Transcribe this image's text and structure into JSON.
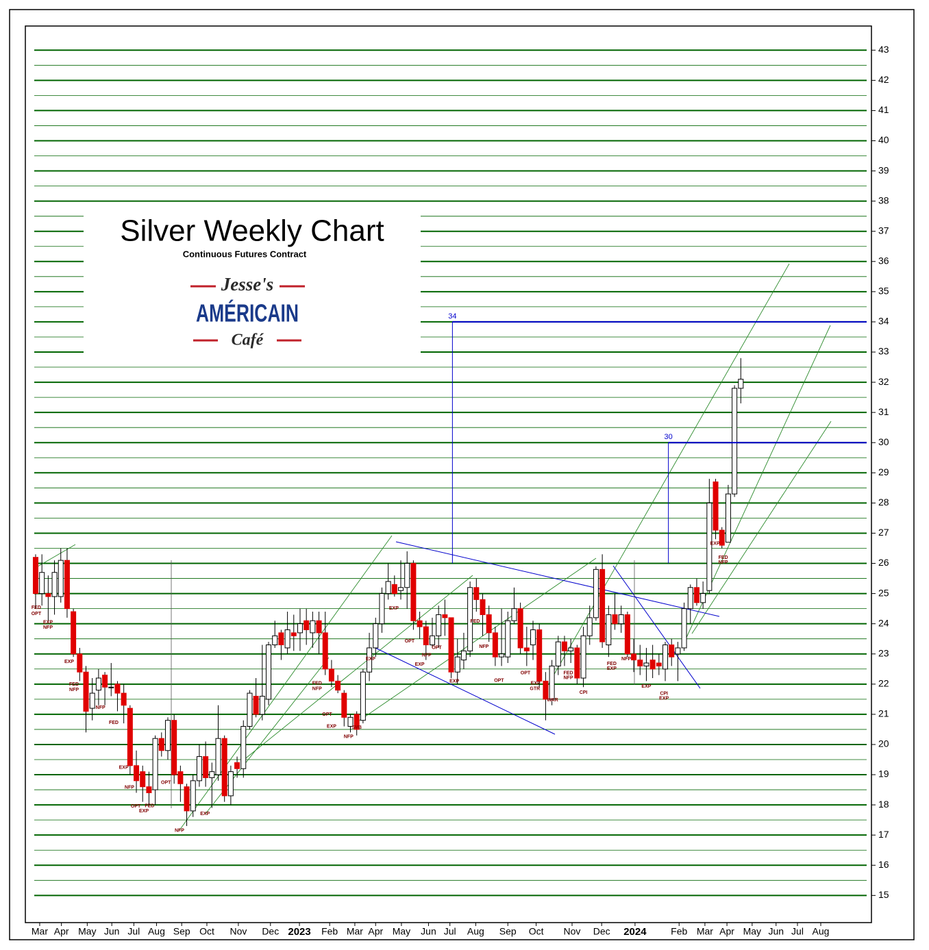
{
  "chart_data": {
    "type": "candlestick",
    "title": "Silver Weekly Chart",
    "subtitle": "Continuous Futures Contract",
    "logo": {
      "top": "Jesse's",
      "middle": "AMÉRICAIN",
      "bottom": "Café"
    },
    "up_color": "#ffffff",
    "down_color": "#e00000",
    "grid_color": "#006400",
    "level_color": "#0000cc",
    "open": [
      26.2,
      25.0,
      25.0,
      24.9,
      24.9,
      26.1,
      24.4,
      23.0,
      22.4,
      21.2,
      21.8,
      22.3,
      21.9,
      22.0,
      21.7,
      21.2,
      19.3,
      19.1,
      18.6,
      18.5,
      20.2,
      19.8,
      20.8,
      19.1,
      18.6,
      17.8,
      18.8,
      19.6,
      18.9,
      19.0,
      20.2,
      18.3,
      19.4,
      19.2,
      20.6,
      21.6,
      21.0,
      21.5,
      23.3,
      23.7,
      23.2,
      23.7,
      23.7,
      24.1,
      23.7,
      24.1,
      23.7,
      22.5,
      22.1,
      21.7,
      20.6,
      21.0,
      20.8,
      22.4,
      23.2,
      24.0,
      25.0,
      25.3,
      25.1,
      25.2,
      26.0,
      24.1,
      23.9,
      23.3,
      23.6,
      24.3,
      24.2,
      22.4,
      22.8,
      23.1,
      25.2,
      24.8,
      24.3,
      23.7,
      22.9,
      22.9,
      24.1,
      24.5,
      23.2,
      23.3,
      23.8,
      22.1,
      21.5,
      22.6,
      23.4,
      23.1,
      23.2,
      22.2,
      23.6,
      24.2,
      25.8,
      23.3,
      24.3,
      24.0,
      24.3,
      23.0,
      22.8,
      22.6,
      22.8,
      22.7,
      22.5,
      23.3,
      23.0,
      23.2,
      24.5,
      25.2,
      24.7,
      25.1,
      28.7,
      27.1,
      26.7,
      28.3,
      31.8
    ],
    "high": [
      26.3,
      26.3,
      25.6,
      26.1,
      26.5,
      26.5,
      24.5,
      23.2,
      22.6,
      22.2,
      22.5,
      22.4,
      22.7,
      22.1,
      22.0,
      21.3,
      19.8,
      19.3,
      19.1,
      20.3,
      20.4,
      20.9,
      21.0,
      19.3,
      18.7,
      19.0,
      20.0,
      20.1,
      19.4,
      21.3,
      20.3,
      19.3,
      19.6,
      20.8,
      21.8,
      22.2,
      23.3,
      23.4,
      24.1,
      23.8,
      24.4,
      24.3,
      24.5,
      24.5,
      24.4,
      24.4,
      24.4,
      22.8,
      22.3,
      21.8,
      21.0,
      21.1,
      22.5,
      23.7,
      24.2,
      25.2,
      26.0,
      25.6,
      26.1,
      26.4,
      26.1,
      24.4,
      24.1,
      24.2,
      24.6,
      24.8,
      24.2,
      23.5,
      23.7,
      25.4,
      25.5,
      25.0,
      24.6,
      23.9,
      24.5,
      24.4,
      25.2,
      24.7,
      23.9,
      24.1,
      24.0,
      22.4,
      22.8,
      23.6,
      23.6,
      23.5,
      23.3,
      23.9,
      24.6,
      25.9,
      26.3,
      24.6,
      25.0,
      24.6,
      24.4,
      23.5,
      23.3,
      23.2,
      23.3,
      23.0,
      23.4,
      23.5,
      23.4,
      24.7,
      25.3,
      25.5,
      25.4,
      28.8,
      28.8,
      27.2,
      28.6,
      31.9,
      32.8
    ],
    "low": [
      24.5,
      24.6,
      24.1,
      24.3,
      24.7,
      24.2,
      22.9,
      22.1,
      20.4,
      20.8,
      21.3,
      21.3,
      21.6,
      21.1,
      20.7,
      19.0,
      18.4,
      18.1,
      18.0,
      18.0,
      19.6,
      19.5,
      18.7,
      18.1,
      17.3,
      17.6,
      18.6,
      18.6,
      17.9,
      18.8,
      18.1,
      18.0,
      18.9,
      18.9,
      20.5,
      20.9,
      20.8,
      21.3,
      23.2,
      22.8,
      23.0,
      23.1,
      23.1,
      23.3,
      23.2,
      23.0,
      22.3,
      21.9,
      21.7,
      20.6,
      20.4,
      20.3,
      20.7,
      22.1,
      22.9,
      23.7,
      24.8,
      24.9,
      24.8,
      24.5,
      23.8,
      23.5,
      22.8,
      23.2,
      23.2,
      23.6,
      22.2,
      22.0,
      22.5,
      22.9,
      24.4,
      23.6,
      23.4,
      22.6,
      22.6,
      22.7,
      24.0,
      23.0,
      22.6,
      22.8,
      21.9,
      20.8,
      21.3,
      22.3,
      22.6,
      22.7,
      22.0,
      21.9,
      23.3,
      24.1,
      23.2,
      22.9,
      23.8,
      23.7,
      22.9,
      22.4,
      22.3,
      22.1,
      22.2,
      22.3,
      22.1,
      22.6,
      22.1,
      23.1,
      24.0,
      24.6,
      24.5,
      25.0,
      26.8,
      26.5,
      26.7,
      28.2,
      31.3
    ],
    "close": [
      25.0,
      25.7,
      24.9,
      25.7,
      26.1,
      24.5,
      23.0,
      22.4,
      21.1,
      21.7,
      22.2,
      21.9,
      21.9,
      21.7,
      21.3,
      19.3,
      18.8,
      18.6,
      18.4,
      20.2,
      19.8,
      20.8,
      19.0,
      18.7,
      17.8,
      18.8,
      19.6,
      18.9,
      19.1,
      20.2,
      18.3,
      19.1,
      19.2,
      20.6,
      21.7,
      21.0,
      21.6,
      23.3,
      23.6,
      23.3,
      23.8,
      23.6,
      24.0,
      23.8,
      24.1,
      23.7,
      22.5,
      22.1,
      21.8,
      20.9,
      20.9,
      20.5,
      22.4,
      23.2,
      24.0,
      25.0,
      25.4,
      25.0,
      25.2,
      26.0,
      24.1,
      23.9,
      23.3,
      23.6,
      24.3,
      24.2,
      22.4,
      22.9,
      23.1,
      25.2,
      24.8,
      24.3,
      23.7,
      22.9,
      23.0,
      24.1,
      24.5,
      23.2,
      23.1,
      23.8,
      22.1,
      21.5,
      22.6,
      23.4,
      23.1,
      23.2,
      22.2,
      23.6,
      24.2,
      25.8,
      23.4,
      24.3,
      24.0,
      24.3,
      23.0,
      22.8,
      22.6,
      22.7,
      22.5,
      22.6,
      23.3,
      22.9,
      23.2,
      24.5,
      25.2,
      24.7,
      25.0,
      28.0,
      27.1,
      26.6,
      28.3,
      31.8,
      32.1
    ],
    "ylim": [
      14.1,
      43.8
    ],
    "yticks": [
      15,
      16,
      17,
      18,
      19,
      20,
      21,
      22,
      23,
      24,
      25,
      26,
      27,
      28,
      29,
      30,
      31,
      32,
      33,
      34,
      35,
      36,
      37,
      38,
      39,
      40,
      41,
      42,
      43
    ],
    "xlim": [
      -1.63,
      132.75
    ],
    "xticks": [
      {
        "value": 0.65,
        "label": "Mar"
      },
      {
        "value": 4.1,
        "label": "Apr"
      },
      {
        "value": 8.2,
        "label": "May"
      },
      {
        "value": 12.1,
        "label": "Jun"
      },
      {
        "value": 15.6,
        "label": "Jul"
      },
      {
        "value": 19.2,
        "label": "Aug"
      },
      {
        "value": 23.2,
        "label": "Sep"
      },
      {
        "value": 27.2,
        "label": "Oct"
      },
      {
        "value": 32.2,
        "label": "Nov"
      },
      {
        "value": 37.3,
        "label": "Dec"
      },
      {
        "value": 41.9,
        "label": "2023"
      },
      {
        "value": 46.7,
        "label": "Feb"
      },
      {
        "value": 50.7,
        "label": "Mar"
      },
      {
        "value": 54.0,
        "label": "Apr"
      },
      {
        "value": 58.1,
        "label": "May"
      },
      {
        "value": 62.4,
        "label": "Jun"
      },
      {
        "value": 65.8,
        "label": "Jul"
      },
      {
        "value": 69.9,
        "label": "Aug"
      },
      {
        "value": 75.0,
        "label": "Sep"
      },
      {
        "value": 79.5,
        "label": "Oct"
      },
      {
        "value": 85.2,
        "label": "Nov"
      },
      {
        "value": 89.9,
        "label": "Dec"
      },
      {
        "value": 95.2,
        "label": "2024"
      },
      {
        "value": 102.2,
        "label": "Feb"
      },
      {
        "value": 106.3,
        "label": "Mar"
      },
      {
        "value": 109.8,
        "label": "Apr"
      },
      {
        "value": 113.8,
        "label": "May"
      },
      {
        "value": 117.6,
        "label": "Jun"
      },
      {
        "value": 121.0,
        "label": "Jul"
      },
      {
        "value": 124.7,
        "label": "Aug"
      }
    ],
    "grid": true,
    "levels": [
      {
        "value": 34,
        "start": 66.2,
        "base": 26
      },
      {
        "value": 30,
        "start": 100.5,
        "base": 26
      }
    ],
    "annotations": [
      {
        "text": "FED",
        "x": 0.1,
        "y": 24.53
      },
      {
        "text": "OPT",
        "x": 0.1,
        "y": 24.33
      },
      {
        "text": "EXP",
        "x": 1.96,
        "y": 24.05
      },
      {
        "text": "NFP",
        "x": 1.96,
        "y": 23.87
      },
      {
        "text": "EXP",
        "x": 5.33,
        "y": 22.74
      },
      {
        "text": "FED",
        "x": 6.1,
        "y": 21.99
      },
      {
        "text": "NFP",
        "x": 6.1,
        "y": 21.81
      },
      {
        "text": "NFP",
        "x": 10.3,
        "y": 21.22
      },
      {
        "text": "FED",
        "x": 12.4,
        "y": 20.72
      },
      {
        "text": "EXP",
        "x": 14.0,
        "y": 19.24
      },
      {
        "text": "NFP",
        "x": 14.9,
        "y": 18.58
      },
      {
        "text": "OPT",
        "x": 15.9,
        "y": 17.95
      },
      {
        "text": "FED",
        "x": 18.1,
        "y": 17.97
      },
      {
        "text": "EXP",
        "x": 17.2,
        "y": 17.79
      },
      {
        "text": "OPT",
        "x": 20.7,
        "y": 18.74
      },
      {
        "text": "NFP",
        "x": 22.85,
        "y": 17.15
      },
      {
        "text": "EXP",
        "x": 26.9,
        "y": 17.7
      },
      {
        "text": "FED",
        "x": 44.7,
        "y": 22.03
      },
      {
        "text": "NFP",
        "x": 44.7,
        "y": 21.85
      },
      {
        "text": "OPT",
        "x": 46.3,
        "y": 20.99
      },
      {
        "text": "EXP",
        "x": 47.0,
        "y": 20.6
      },
      {
        "text": "NFP",
        "x": 49.7,
        "y": 20.26
      },
      {
        "text": "SVB",
        "x": 51.0,
        "y": 20.56
      },
      {
        "text": "EXP",
        "x": 53.2,
        "y": 22.83
      },
      {
        "text": "EXP",
        "x": 56.9,
        "y": 24.51
      },
      {
        "text": "OPT",
        "x": 59.4,
        "y": 23.42
      },
      {
        "text": "EXP",
        "x": 61.0,
        "y": 22.65
      },
      {
        "text": "NFP",
        "x": 62.1,
        "y": 22.96
      },
      {
        "text": "OPT",
        "x": 63.7,
        "y": 23.21
      },
      {
        "text": "EXP",
        "x": 66.5,
        "y": 22.1
      },
      {
        "text": "FED",
        "x": 69.8,
        "y": 24.08
      },
      {
        "text": "NFP",
        "x": 71.2,
        "y": 23.24
      },
      {
        "text": "OPT",
        "x": 73.6,
        "y": 22.12
      },
      {
        "text": "OPT",
        "x": 77.8,
        "y": 22.37
      },
      {
        "text": "EXP",
        "x": 79.4,
        "y": 22.03
      },
      {
        "text": "GTR",
        "x": 79.3,
        "y": 21.85
      },
      {
        "text": "WAR",
        "x": 82.1,
        "y": 21.47
      },
      {
        "text": "FED",
        "x": 84.6,
        "y": 22.37
      },
      {
        "text": "NFP",
        "x": 84.6,
        "y": 22.21
      },
      {
        "text": "CPI",
        "x": 87.0,
        "y": 21.72
      },
      {
        "text": "FED",
        "x": 91.5,
        "y": 22.67
      },
      {
        "text": "EXP",
        "x": 91.5,
        "y": 22.51
      },
      {
        "text": "NFP",
        "x": 93.8,
        "y": 22.83
      },
      {
        "text": "EXP",
        "x": 97.0,
        "y": 21.92
      },
      {
        "text": "CPI",
        "x": 99.8,
        "y": 21.69
      },
      {
        "text": "EXP",
        "x": 99.8,
        "y": 21.53
      },
      {
        "text": "EXP",
        "x": 107.9,
        "y": 26.66
      },
      {
        "text": "FED",
        "x": 109.2,
        "y": 26.19
      },
      {
        "text": "NFP",
        "x": 109.2,
        "y": 26.03
      }
    ]
  }
}
